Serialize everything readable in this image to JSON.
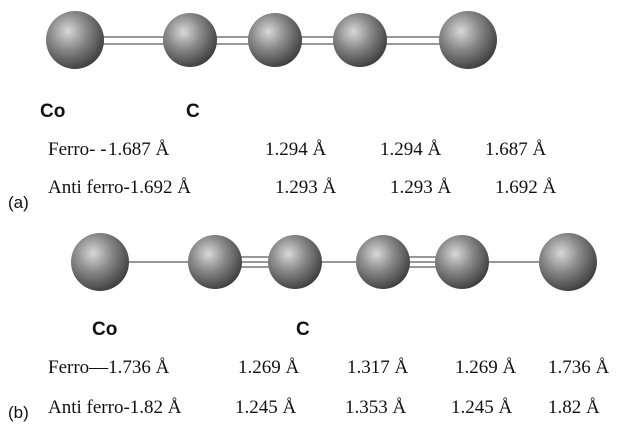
{
  "panels": [
    {
      "label": "(a)",
      "atoms": {
        "metal": "Co",
        "carbon": "C"
      },
      "rows": [
        [
          "Ferro- -",
          "1.687 Å",
          "1.294 Å",
          "1.294 Å",
          "1.687 Å"
        ],
        [
          "Anti ferro-1.692 Å",
          "1.293 Å",
          "1.293 Å",
          "1.692 Å"
        ]
      ]
    },
    {
      "label": "(b)",
      "atoms": {
        "metal": "Co",
        "carbon": "C"
      },
      "rows": [
        [
          "Ferro—1.736 Å",
          "1.269 Å",
          "1.317 Å",
          "1.269 Å",
          "1.736 Å"
        ],
        [
          "Anti ferro-1.82 Å",
          "1.245 Å",
          "1.353 Å",
          "1.245 Å",
          "1.82 Å"
        ]
      ]
    }
  ]
}
